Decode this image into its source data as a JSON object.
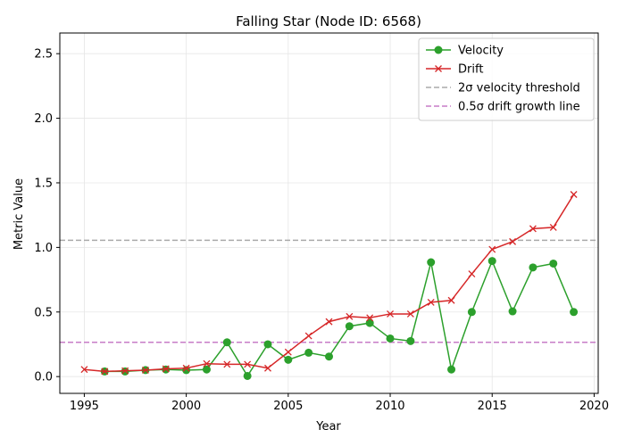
{
  "chart_data": {
    "type": "line",
    "title": "Falling Star (Node ID: 6568)",
    "xlabel": "Year",
    "ylabel": "Metric Value",
    "xlim": [
      1993.8,
      2020.2
    ],
    "ylim": [
      -0.13,
      2.66
    ],
    "xticks": [
      1995,
      2000,
      2005,
      2010,
      2015,
      2020
    ],
    "yticks": [
      0.0,
      0.5,
      1.0,
      1.5,
      2.0,
      2.5
    ],
    "xtick_labels": [
      "1995",
      "2000",
      "2005",
      "2010",
      "2015",
      "2020"
    ],
    "ytick_labels": [
      "0.0",
      "0.5",
      "1.0",
      "1.5",
      "2.0",
      "2.5"
    ],
    "grid": true,
    "legend_position": "top-right",
    "series": [
      {
        "name": "Velocity",
        "color": "#2ca02c",
        "marker": "circle",
        "x": [
          1996,
          1997,
          1998,
          1999,
          2000,
          2001,
          2002,
          2003,
          2004,
          2005,
          2006,
          2007,
          2008,
          2009,
          2010,
          2011,
          2012,
          2013,
          2014,
          2015,
          2016,
          2017,
          2018,
          2019
        ],
        "y": [
          0.04,
          0.04,
          0.05,
          0.055,
          0.05,
          0.055,
          0.265,
          0.005,
          0.25,
          0.13,
          0.185,
          0.155,
          0.39,
          0.415,
          0.295,
          0.275,
          0.885,
          0.055,
          0.5,
          0.895,
          0.505,
          0.845,
          0.875,
          0.5
        ]
      },
      {
        "name": "Drift",
        "color": "#d62728",
        "marker": "x",
        "x": [
          1995,
          1996,
          1997,
          1998,
          1999,
          2000,
          2001,
          2002,
          2003,
          2004,
          2005,
          2006,
          2007,
          2008,
          2009,
          2010,
          2011,
          2012,
          2013,
          2014,
          2015,
          2016,
          2017,
          2018,
          2019
        ],
        "y": [
          0.055,
          0.04,
          0.045,
          0.05,
          0.06,
          0.065,
          0.1,
          0.095,
          0.095,
          0.065,
          0.19,
          0.315,
          0.425,
          0.465,
          0.455,
          0.485,
          0.485,
          0.575,
          0.59,
          0.795,
          0.985,
          1.045,
          1.145,
          1.155,
          1.41
        ]
      }
    ],
    "reference_lines": [
      {
        "name": "2σ velocity threshold",
        "value": 1.055,
        "color": "#aaaaaa",
        "style": "dashed"
      },
      {
        "name": "0.5σ drift growth line",
        "value": 0.265,
        "color": "#c77cc7",
        "style": "dashed"
      }
    ]
  }
}
